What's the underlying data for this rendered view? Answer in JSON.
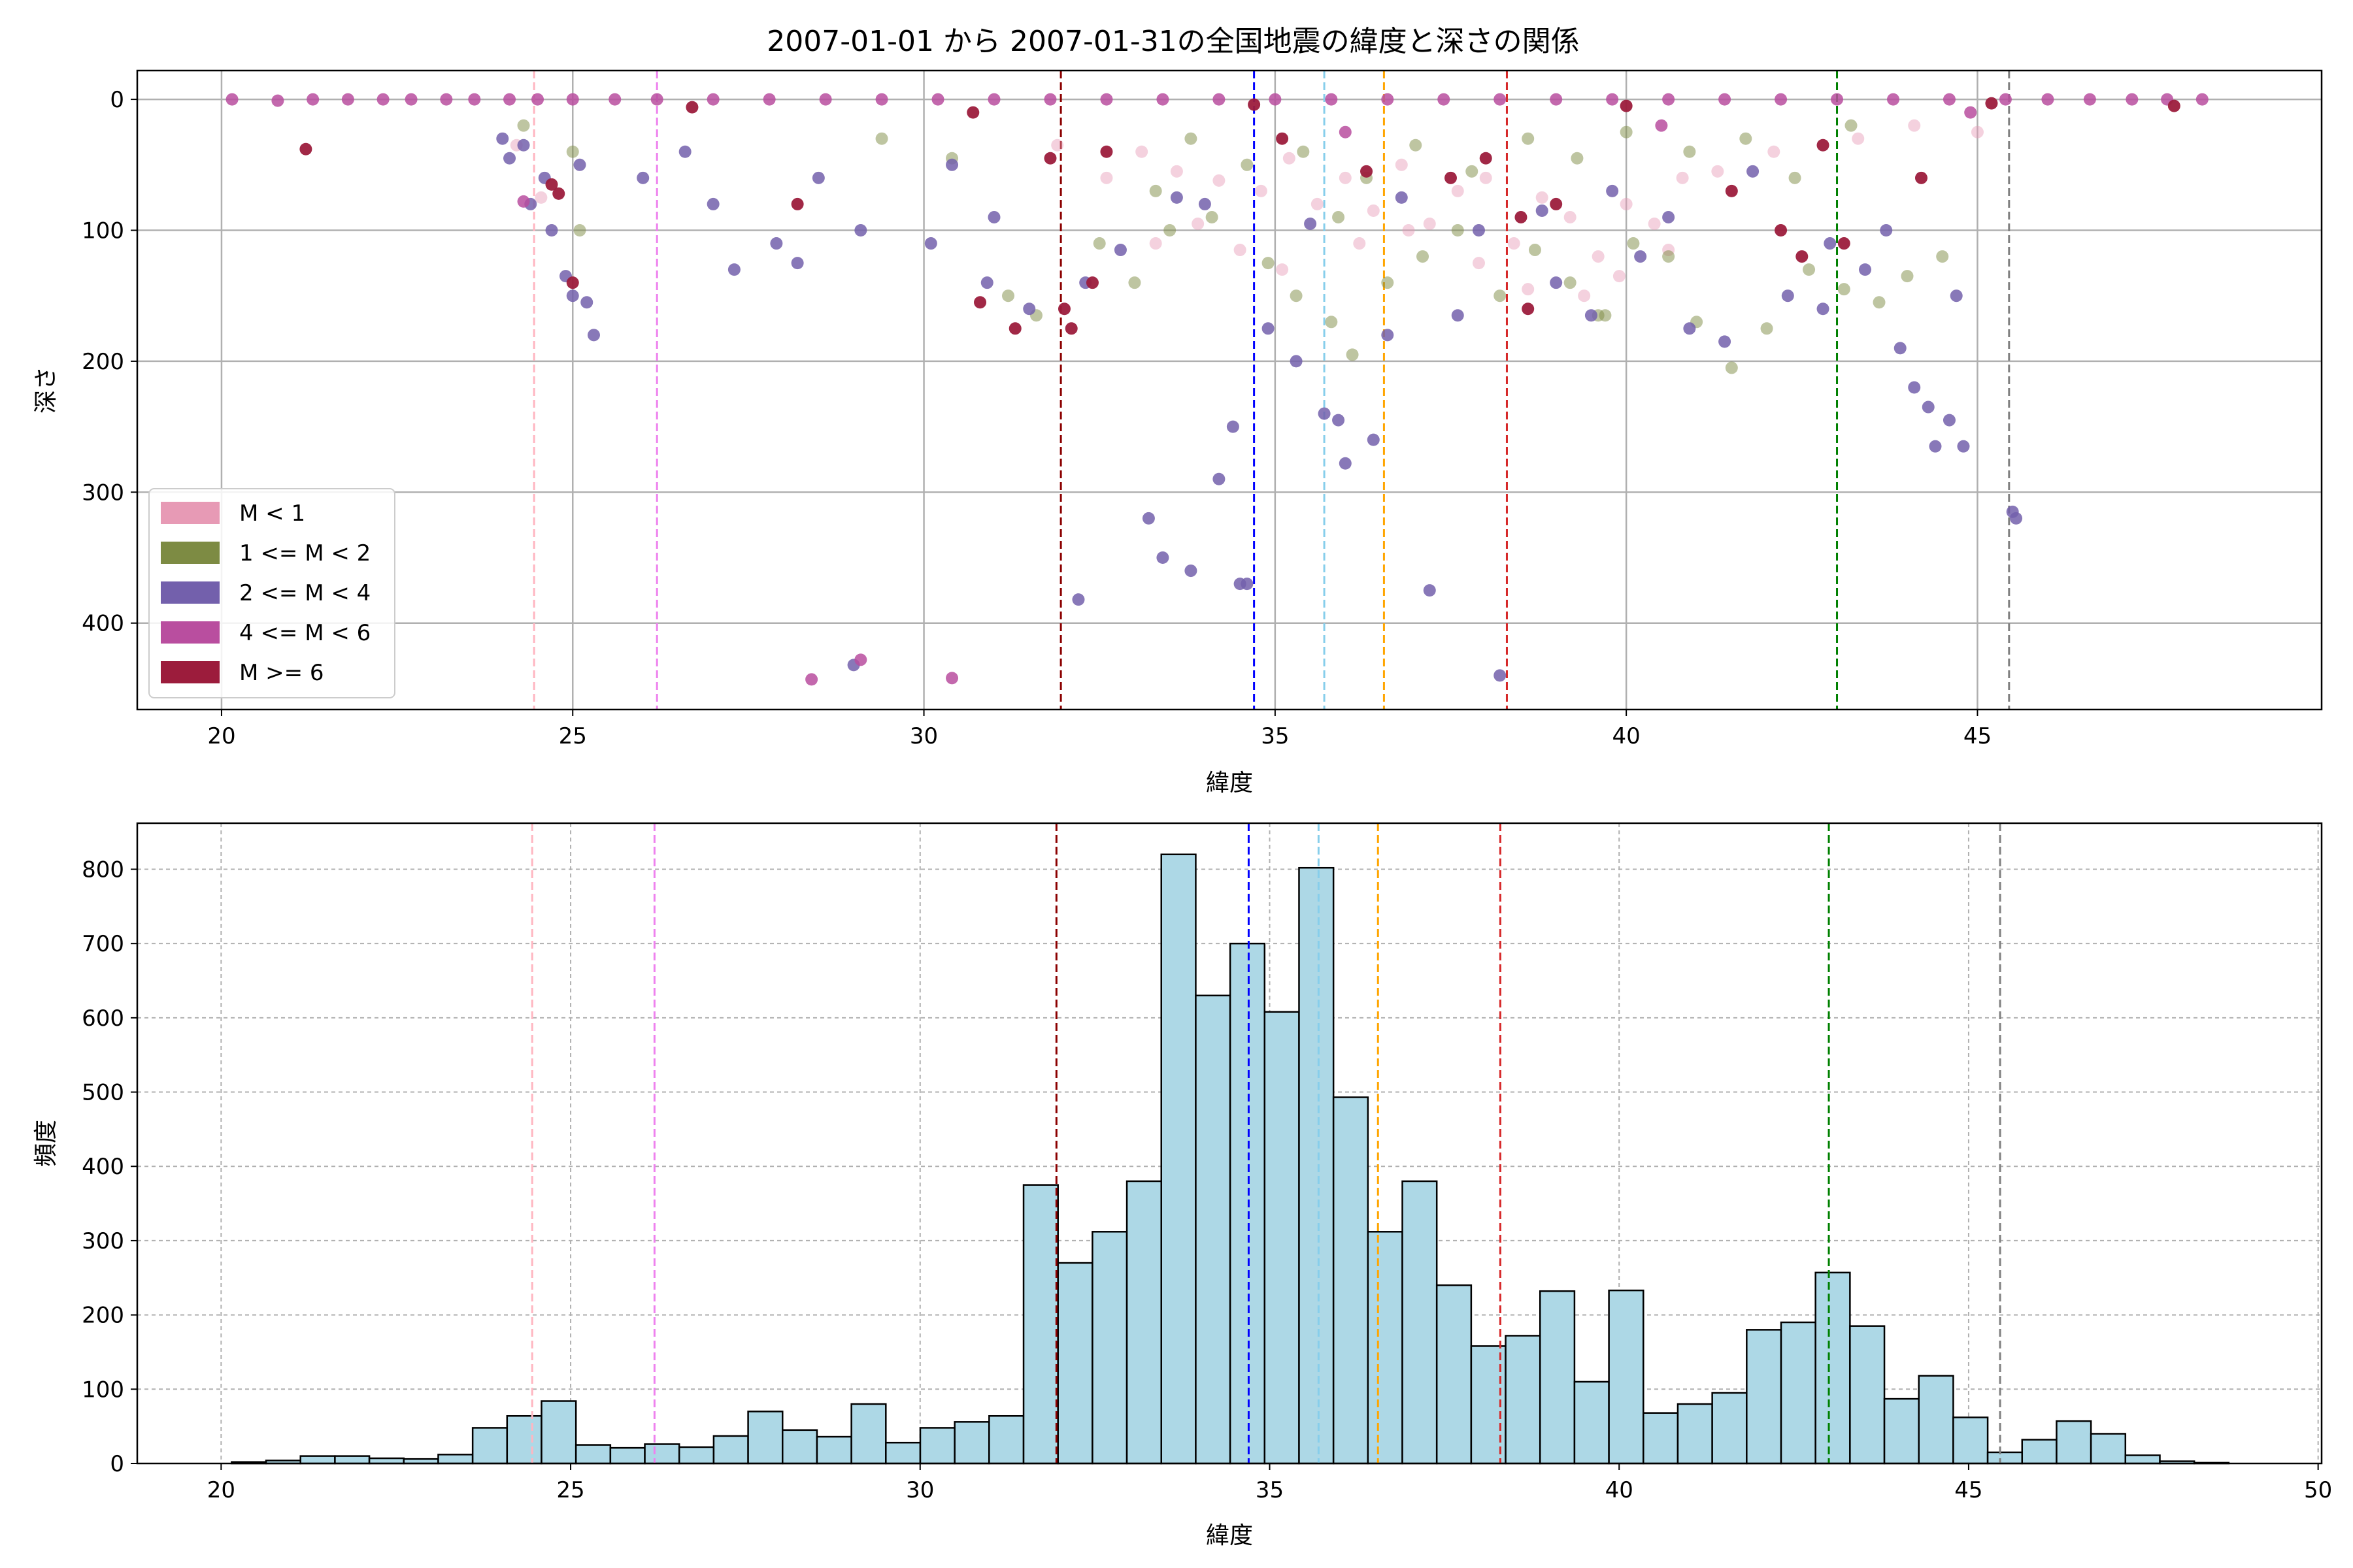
{
  "figure": {
    "title": "2007-01-01 から 2007-01-31の全国地震の緯度と深さの関係"
  },
  "colors": {
    "m_lt_1": "#e79ab5",
    "m_1_2": "#7d8b43",
    "m_2_4": "#7360ac",
    "m_4_6": "#b94e9f",
    "m_ge_6": "#9c1c3c",
    "hist_fill": "#add8e6",
    "hist_edge": "#000000",
    "grid": "#b0b0b0",
    "vline_colors": [
      "#ffb6c1",
      "#ee82ee",
      "#8b0000",
      "#0000ff",
      "#87ceeb",
      "#ffa500",
      "#d62728",
      "#008000",
      "#808080"
    ]
  },
  "chart_data": [
    {
      "type": "scatter",
      "title": "2007-01-01 から 2007-01-31の全国地震の緯度と深さの関係",
      "xlabel": "緯度",
      "ylabel": "深さ",
      "xlim": [
        18.8,
        49.9
      ],
      "ylim": [
        466,
        -22
      ],
      "y_inverted": true,
      "xticks": [
        20,
        25,
        30,
        35,
        40,
        45
      ],
      "yticks": [
        0,
        100,
        200,
        300,
        400
      ],
      "grid": true,
      "legend_position": "lower-left",
      "legend": [
        {
          "label": "M < 1",
          "color": "#e79ab5"
        },
        {
          "label": "1 <= M < 2",
          "color": "#7d8b43"
        },
        {
          "label": "2 <= M < 4",
          "color": "#7360ac"
        },
        {
          "label": "4 <= M < 6",
          "color": "#b94e9f"
        },
        {
          "label": "M >= 6",
          "color": "#9c1c3c"
        }
      ],
      "vlines": [
        24.45,
        26.2,
        31.95,
        34.7,
        35.7,
        36.55,
        38.3,
        43.0,
        45.45
      ],
      "series": [
        {
          "name": "M < 1",
          "points": [
            [
              33.1,
              40
            ],
            [
              33.6,
              55
            ],
            [
              34.2,
              62
            ],
            [
              34.8,
              70
            ],
            [
              35.2,
              45
            ],
            [
              35.6,
              80
            ],
            [
              36.0,
              60
            ],
            [
              36.4,
              85
            ],
            [
              36.8,
              50
            ],
            [
              37.2,
              95
            ],
            [
              37.6,
              70
            ],
            [
              38.0,
              60
            ],
            [
              38.4,
              110
            ],
            [
              38.8,
              75
            ],
            [
              39.2,
              90
            ],
            [
              39.6,
              120
            ],
            [
              40.0,
              80
            ],
            [
              40.4,
              95
            ],
            [
              40.8,
              60
            ],
            [
              35.1,
              130
            ],
            [
              34.5,
              115
            ],
            [
              36.2,
              110
            ],
            [
              37.9,
              125
            ],
            [
              39.4,
              150
            ],
            [
              36.9,
              100
            ],
            [
              33.9,
              95
            ],
            [
              32.6,
              60
            ],
            [
              31.9,
              35
            ],
            [
              33.3,
              110
            ],
            [
              24.2,
              35
            ],
            [
              24.55,
              75
            ],
            [
              41.3,
              55
            ],
            [
              42.1,
              40
            ],
            [
              43.3,
              30
            ],
            [
              44.1,
              20
            ],
            [
              45.0,
              25
            ],
            [
              38.6,
              145
            ],
            [
              39.9,
              135
            ],
            [
              40.6,
              115
            ]
          ]
        },
        {
          "name": "1 <= M < 2",
          "points": [
            [
              31.2,
              150
            ],
            [
              31.6,
              165
            ],
            [
              32.5,
              110
            ],
            [
              33.0,
              140
            ],
            [
              33.5,
              100
            ],
            [
              34.1,
              90
            ],
            [
              34.9,
              125
            ],
            [
              35.3,
              150
            ],
            [
              35.8,
              170
            ],
            [
              36.1,
              195
            ],
            [
              36.6,
              140
            ],
            [
              37.1,
              120
            ],
            [
              37.6,
              100
            ],
            [
              38.2,
              150
            ],
            [
              38.7,
              115
            ],
            [
              39.2,
              140
            ],
            [
              39.6,
              165
            ],
            [
              40.1,
              110
            ],
            [
              40.6,
              120
            ],
            [
              41.0,
              170
            ],
            [
              41.5,
              205
            ],
            [
              42.0,
              175
            ],
            [
              42.6,
              130
            ],
            [
              43.1,
              145
            ],
            [
              43.6,
              155
            ],
            [
              44.0,
              135
            ],
            [
              44.5,
              120
            ],
            [
              33.8,
              30
            ],
            [
              34.6,
              50
            ],
            [
              35.4,
              40
            ],
            [
              36.3,
              60
            ],
            [
              37.0,
              35
            ],
            [
              37.8,
              55
            ],
            [
              38.6,
              30
            ],
            [
              39.3,
              45
            ],
            [
              40.0,
              25
            ],
            [
              40.9,
              40
            ],
            [
              41.7,
              30
            ],
            [
              42.4,
              60
            ],
            [
              43.2,
              20
            ],
            [
              24.3,
              20
            ],
            [
              25.0,
              40
            ],
            [
              25.1,
              100
            ],
            [
              29.4,
              30
            ],
            [
              30.4,
              45
            ],
            [
              33.3,
              70
            ],
            [
              35.9,
              90
            ],
            [
              39.7,
              165
            ]
          ]
        },
        {
          "name": "2 <= M < 4",
          "points": [
            [
              24.0,
              30
            ],
            [
              24.1,
              45
            ],
            [
              24.6,
              60
            ],
            [
              24.7,
              100
            ],
            [
              24.9,
              135
            ],
            [
              25.0,
              150
            ],
            [
              25.2,
              155
            ],
            [
              25.3,
              180
            ],
            [
              25.1,
              50
            ],
            [
              24.4,
              80
            ],
            [
              26.6,
              40
            ],
            [
              27.3,
              130
            ],
            [
              27.9,
              110
            ],
            [
              28.2,
              125
            ],
            [
              29.1,
              100
            ],
            [
              30.1,
              110
            ],
            [
              30.4,
              50
            ],
            [
              30.9,
              140
            ],
            [
              31.5,
              160
            ],
            [
              32.3,
              140
            ],
            [
              32.8,
              115
            ],
            [
              33.2,
              320
            ],
            [
              33.4,
              350
            ],
            [
              33.8,
              360
            ],
            [
              34.2,
              290
            ],
            [
              34.4,
              250
            ],
            [
              34.5,
              370
            ],
            [
              34.6,
              370
            ],
            [
              34.9,
              175
            ],
            [
              35.3,
              200
            ],
            [
              35.7,
              240
            ],
            [
              35.9,
              245
            ],
            [
              36.0,
              278
            ],
            [
              36.4,
              260
            ],
            [
              36.6,
              180
            ],
            [
              37.2,
              375
            ],
            [
              37.6,
              165
            ],
            [
              38.2,
              440
            ],
            [
              39.0,
              140
            ],
            [
              39.5,
              165
            ],
            [
              40.2,
              120
            ],
            [
              40.9,
              175
            ],
            [
              41.4,
              185
            ],
            [
              42.3,
              150
            ],
            [
              42.8,
              160
            ],
            [
              43.4,
              130
            ],
            [
              43.9,
              190
            ],
            [
              44.1,
              220
            ],
            [
              44.3,
              235
            ],
            [
              44.4,
              265
            ],
            [
              44.6,
              245
            ],
            [
              44.8,
              265
            ],
            [
              45.5,
              315
            ],
            [
              45.55,
              320
            ],
            [
              32.2,
              382
            ],
            [
              29.0,
              432
            ],
            [
              34.0,
              80
            ],
            [
              35.5,
              95
            ],
            [
              36.8,
              75
            ],
            [
              37.9,
              100
            ],
            [
              38.8,
              85
            ],
            [
              39.8,
              70
            ],
            [
              40.6,
              90
            ],
            [
              41.8,
              55
            ],
            [
              42.9,
              110
            ],
            [
              44.7,
              150
            ],
            [
              43.7,
              100
            ],
            [
              33.6,
              75
            ],
            [
              31.0,
              90
            ],
            [
              28.5,
              60
            ],
            [
              27.0,
              80
            ],
            [
              26.0,
              60
            ],
            [
              24.3,
              35
            ]
          ]
        },
        {
          "name": "4 <= M < 6",
          "points": [
            [
              20.15,
              0
            ],
            [
              20.8,
              1
            ],
            [
              21.3,
              0
            ],
            [
              21.8,
              0
            ],
            [
              22.3,
              0
            ],
            [
              22.7,
              0
            ],
            [
              23.2,
              0
            ],
            [
              23.6,
              0
            ],
            [
              24.1,
              0
            ],
            [
              24.5,
              0
            ],
            [
              25.0,
              0
            ],
            [
              25.6,
              0
            ],
            [
              26.2,
              0
            ],
            [
              27.0,
              0
            ],
            [
              27.8,
              0
            ],
            [
              28.6,
              0
            ],
            [
              29.4,
              0
            ],
            [
              30.2,
              0
            ],
            [
              31.0,
              0
            ],
            [
              31.8,
              0
            ],
            [
              32.6,
              0
            ],
            [
              33.4,
              0
            ],
            [
              34.2,
              0
            ],
            [
              35.0,
              0
            ],
            [
              35.8,
              0
            ],
            [
              36.6,
              0
            ],
            [
              37.4,
              0
            ],
            [
              38.2,
              0
            ],
            [
              39.0,
              0
            ],
            [
              39.8,
              0
            ],
            [
              40.6,
              0
            ],
            [
              41.4,
              0
            ],
            [
              42.2,
              0
            ],
            [
              43.0,
              0
            ],
            [
              43.8,
              0
            ],
            [
              44.6,
              0
            ],
            [
              45.4,
              0
            ],
            [
              46.0,
              0
            ],
            [
              46.6,
              0
            ],
            [
              47.2,
              0
            ],
            [
              47.7,
              0
            ],
            [
              48.2,
              0
            ],
            [
              28.4,
              443
            ],
            [
              29.1,
              428
            ],
            [
              30.4,
              442
            ],
            [
              24.3,
              78
            ],
            [
              36.0,
              25
            ],
            [
              40.5,
              20
            ],
            [
              44.9,
              10
            ]
          ]
        },
        {
          "name": "M >= 6",
          "points": [
            [
              21.2,
              38
            ],
            [
              24.7,
              65
            ],
            [
              24.8,
              72
            ],
            [
              25.0,
              140
            ],
            [
              28.2,
              80
            ],
            [
              30.8,
              155
            ],
            [
              31.3,
              175
            ],
            [
              31.8,
              45
            ],
            [
              32.0,
              160
            ],
            [
              32.1,
              175
            ],
            [
              32.4,
              140
            ],
            [
              32.6,
              40
            ],
            [
              35.1,
              30
            ],
            [
              36.3,
              55
            ],
            [
              37.5,
              60
            ],
            [
              38.0,
              45
            ],
            [
              38.5,
              90
            ],
            [
              38.6,
              160
            ],
            [
              39.0,
              80
            ],
            [
              41.5,
              70
            ],
            [
              42.2,
              100
            ],
            [
              42.5,
              120
            ],
            [
              42.8,
              35
            ],
            [
              43.1,
              110
            ],
            [
              44.2,
              60
            ],
            [
              47.8,
              5
            ],
            [
              26.7,
              6
            ],
            [
              30.7,
              10
            ],
            [
              34.7,
              4
            ],
            [
              40.0,
              5
            ],
            [
              45.2,
              3
            ]
          ]
        }
      ]
    },
    {
      "type": "bar",
      "title": "",
      "xlabel": "緯度",
      "ylabel": "頻度",
      "xlim": [
        18.8,
        50.05
      ],
      "ylim": [
        0,
        862
      ],
      "xticks": [
        20,
        25,
        30,
        35,
        40,
        45,
        50
      ],
      "yticks": [
        0,
        100,
        200,
        300,
        400,
        500,
        600,
        700,
        800
      ],
      "grid": true,
      "bin_start": 20.15,
      "bin_width": 0.4926,
      "values": [
        2,
        4,
        10,
        10,
        7,
        6,
        12,
        48,
        64,
        84,
        25,
        21,
        26,
        22,
        37,
        70,
        45,
        36,
        80,
        28,
        48,
        56,
        64,
        375,
        270,
        312,
        380,
        820,
        630,
        700,
        608,
        802,
        493,
        312,
        380,
        240,
        158,
        172,
        232,
        110,
        233,
        68,
        80,
        95,
        180,
        190,
        257,
        185,
        87,
        118,
        62,
        15,
        32,
        57,
        40,
        11,
        3,
        1
      ],
      "vlines": [
        24.45,
        26.2,
        31.95,
        34.7,
        35.7,
        36.55,
        38.3,
        43.0,
        45.45
      ]
    }
  ]
}
